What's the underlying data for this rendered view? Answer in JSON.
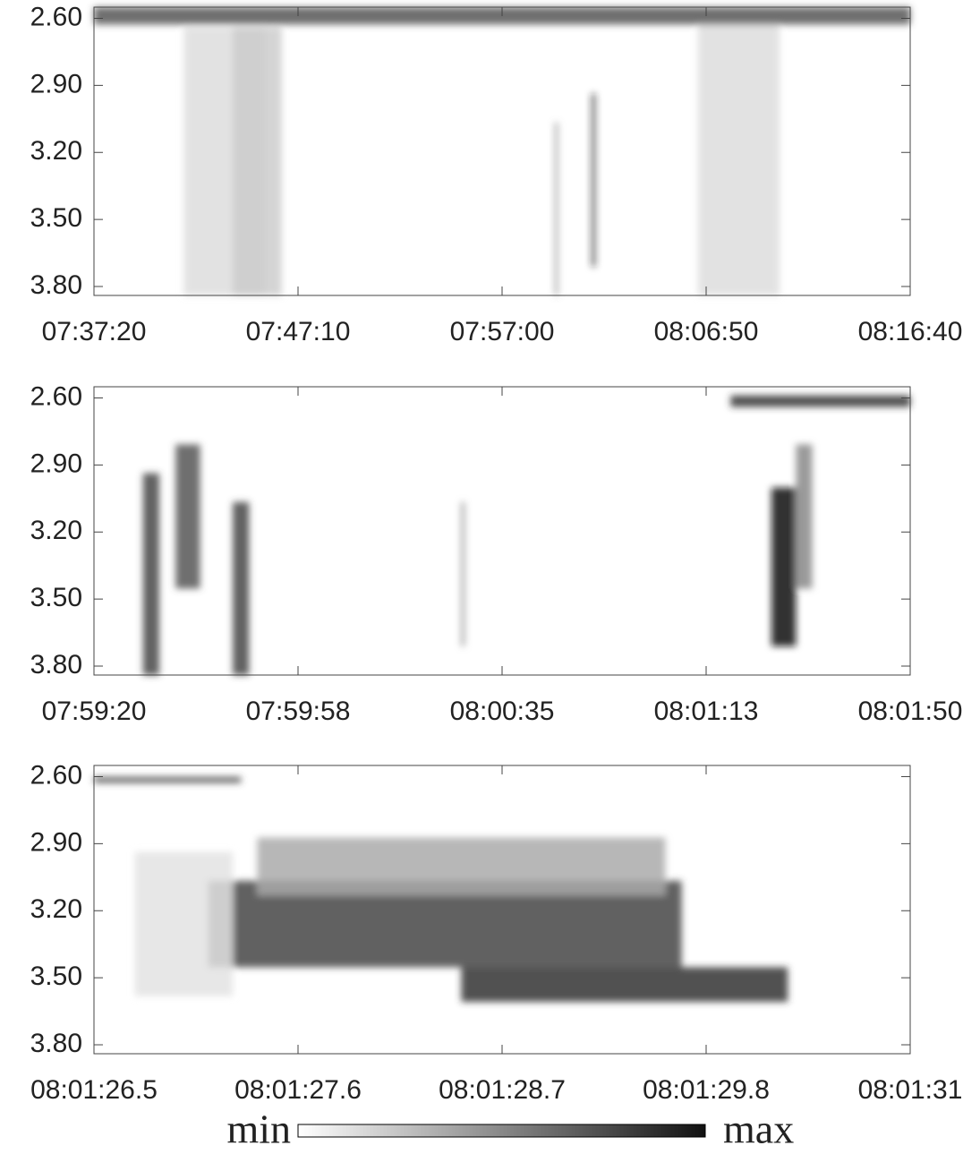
{
  "chart_data": [
    {
      "type": "heatmap",
      "ylim": [
        2.55,
        3.84
      ],
      "yticks": [
        {
          "value": 2.6,
          "label": "2.60"
        },
        {
          "value": 2.9,
          "label": "2.90"
        },
        {
          "value": 3.2,
          "label": "3.20"
        },
        {
          "value": 3.5,
          "label": "3.50"
        },
        {
          "value": 3.8,
          "label": "3.80"
        }
      ],
      "xticks": [
        "07:37:20",
        "07:47:10",
        "07:57:00",
        "08:06:50",
        "08:16:40"
      ]
    },
    {
      "type": "heatmap",
      "ylim": [
        2.55,
        3.84
      ],
      "yticks": [
        {
          "value": 2.6,
          "label": "2.60"
        },
        {
          "value": 2.9,
          "label": "2.90"
        },
        {
          "value": 3.2,
          "label": "3.20"
        },
        {
          "value": 3.5,
          "label": "3.50"
        },
        {
          "value": 3.8,
          "label": "3.80"
        }
      ],
      "xticks": [
        "07:59:20",
        "07:59:58",
        "08:00:35",
        "08:01:13",
        "08:01:50"
      ]
    },
    {
      "type": "heatmap",
      "ylim": [
        2.55,
        3.84
      ],
      "yticks": [
        {
          "value": 2.6,
          "label": "2.60"
        },
        {
          "value": 2.9,
          "label": "2.90"
        },
        {
          "value": 3.2,
          "label": "3.20"
        },
        {
          "value": 3.5,
          "label": "3.50"
        },
        {
          "value": 3.8,
          "label": "3.80"
        }
      ],
      "xticks": [
        "08:01:26.5",
        "08:01:27.6",
        "08:01:28.7",
        "08:01:29.8",
        "08:01:31"
      ]
    }
  ],
  "colorbar": {
    "min_label": "min",
    "max_label": "max"
  }
}
